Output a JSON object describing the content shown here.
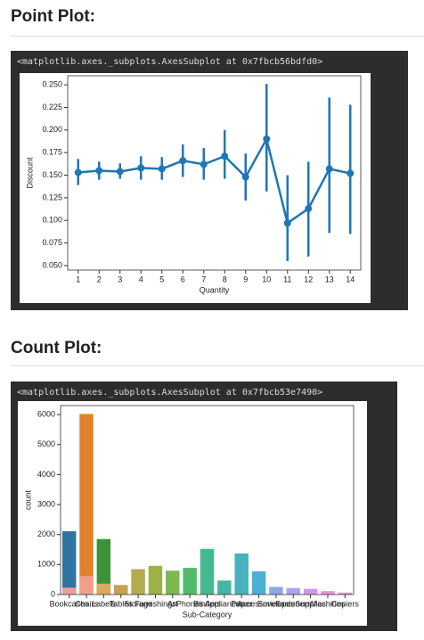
{
  "sections": [
    {
      "heading": "Point Plot:",
      "output": "<matplotlib.axes._subplots.AxesSubplot at 0x7fbcb56bdfd0>"
    },
    {
      "heading": "Count Plot:",
      "output": "<matplotlib.axes._subplots.AxesSubplot at 0x7fbcb53e7490>"
    }
  ],
  "chart_data": [
    {
      "type": "point",
      "xlabel": "Quantity",
      "ylabel": "Discount",
      "color": "#1f77b4",
      "categories": [
        "1",
        "2",
        "3",
        "4",
        "5",
        "6",
        "7",
        "8",
        "9",
        "10",
        "11",
        "12",
        "13",
        "14"
      ],
      "values": [
        0.153,
        0.155,
        0.154,
        0.158,
        0.157,
        0.166,
        0.162,
        0.171,
        0.148,
        0.19,
        0.097,
        0.113,
        0.157,
        0.152
      ],
      "lower": [
        0.139,
        0.145,
        0.146,
        0.145,
        0.145,
        0.148,
        0.145,
        0.146,
        0.122,
        0.132,
        0.055,
        0.06,
        0.086,
        0.085
      ],
      "upper": [
        0.168,
        0.165,
        0.163,
        0.171,
        0.17,
        0.184,
        0.18,
        0.2,
        0.174,
        0.251,
        0.15,
        0.165,
        0.236,
        0.228
      ],
      "ylim": [
        0.045,
        0.26
      ],
      "yticks": [
        {
          "value": 0.05,
          "label": "0.050"
        },
        {
          "value": 0.075,
          "label": "0.075"
        },
        {
          "value": 0.1,
          "label": "0.100"
        },
        {
          "value": 0.125,
          "label": "0.125"
        },
        {
          "value": 0.15,
          "label": "0.150"
        },
        {
          "value": 0.175,
          "label": "0.175"
        },
        {
          "value": 0.2,
          "label": "0.200"
        },
        {
          "value": 0.225,
          "label": "0.225"
        },
        {
          "value": 0.25,
          "label": "0.250"
        }
      ]
    },
    {
      "type": "bar",
      "xlabel": "Sub-Category",
      "ylabel": "count",
      "categories": [
        "Bookcases",
        "Chairs",
        "Labels",
        "Tables",
        "Storage",
        "Furnishings",
        "Art",
        "Phones",
        "Binders",
        "Appliances",
        "Paper",
        "Accessories",
        "Envelopes",
        "Fasteners",
        "Supplies",
        "Machines",
        "Copiers"
      ],
      "series": [
        {
          "colors": [
            "#3274a1",
            "#e1812c",
            "#3a923a"
          ],
          "values": [
            2110,
            6020,
            1850,
            null,
            null,
            null,
            null,
            null,
            null,
            null,
            null,
            null,
            null,
            null,
            null,
            null,
            null
          ]
        },
        {
          "colors": [
            "#f19c9c",
            "#f0a08a",
            "#d9a95c",
            "#c4a352",
            "#b4ab4e",
            "#9bb24a",
            "#7cb852",
            "#52bb6a",
            "#44b98f",
            "#45b5a8",
            "#47b2bd",
            "#4ab0d4",
            "#8fa8e8",
            "#b3a0ea",
            "#d396e6",
            "#e891d9",
            "#f096c3"
          ],
          "values": [
            228,
            617,
            364,
            319,
            846,
            957,
            796,
            889,
            1523,
            466,
            1370,
            775,
            254,
            217,
            190,
            115,
            68
          ]
        }
      ],
      "ylim": [
        0,
        6300
      ],
      "yticks": [
        0,
        1000,
        2000,
        3000,
        4000,
        5000,
        6000
      ]
    }
  ]
}
